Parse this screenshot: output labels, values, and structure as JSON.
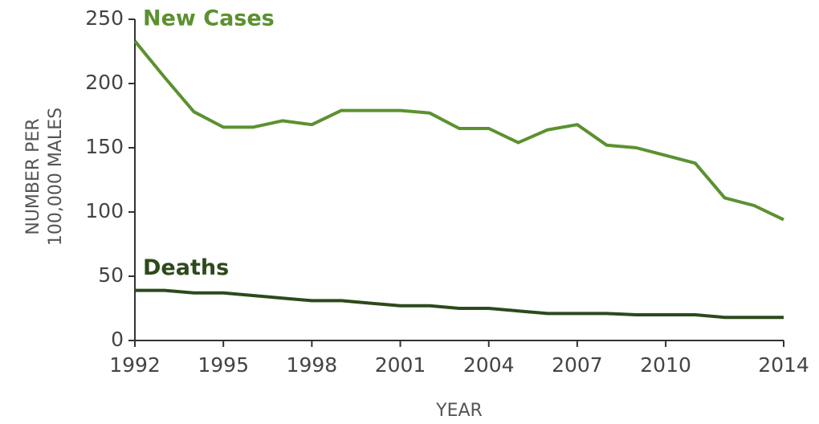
{
  "chart_data": {
    "type": "line",
    "x_label": "YEAR",
    "y_label": [
      "NUMBER PER",
      "100,000 MALES"
    ],
    "x": [
      1992,
      1993,
      1994,
      1995,
      1996,
      1997,
      1998,
      1999,
      2000,
      2001,
      2002,
      2003,
      2004,
      2005,
      2006,
      2007,
      2008,
      2009,
      2010,
      2011,
      2012,
      2013,
      2014
    ],
    "series": [
      {
        "name": "New Cases",
        "color": "#5b9130",
        "values": [
          233,
          205,
          178,
          166,
          166,
          171,
          168,
          179,
          179,
          179,
          177,
          165,
          165,
          154,
          164,
          168,
          152,
          150,
          144,
          138,
          111,
          105,
          94
        ]
      },
      {
        "name": "Deaths",
        "color": "#2c4a1a",
        "values": [
          39,
          39,
          37,
          37,
          35,
          33,
          31,
          31,
          29,
          27,
          27,
          25,
          25,
          23,
          21,
          21,
          21,
          20,
          20,
          20,
          18,
          18,
          18
        ]
      }
    ],
    "xlim": [
      1992,
      2014
    ],
    "xticks": [
      1992,
      1995,
      1998,
      2001,
      2004,
      2007,
      2010,
      2014
    ],
    "ylim": [
      0,
      250
    ],
    "yticks": [
      0,
      50,
      100,
      150,
      200,
      250
    ],
    "grid": false
  }
}
